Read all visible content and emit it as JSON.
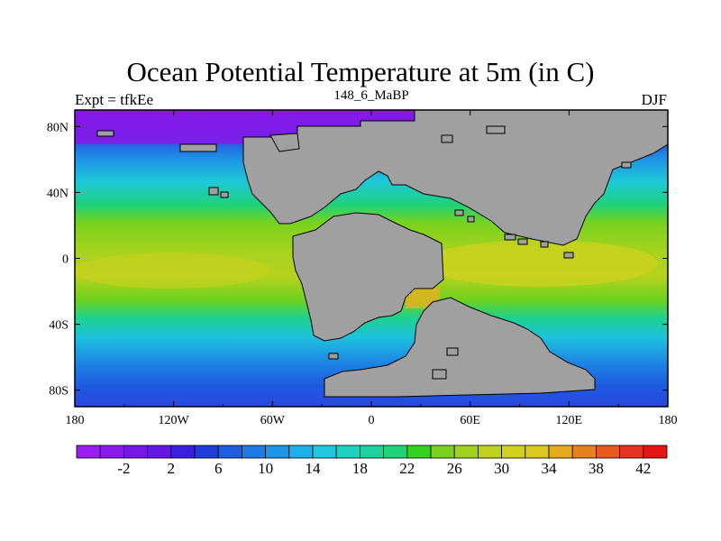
{
  "title": "Ocean Potential Temperature at 5m (in C)",
  "left_string": "Expt = tfkEe",
  "center_string": "148_6_MaBP",
  "right_string": "DJF",
  "land_color": "#a0a0a0",
  "x_ticks": [
    "180",
    "120W",
    "60W",
    "0",
    "60E",
    "120E",
    "180"
  ],
  "y_ticks": [
    "80N",
    "40N",
    "0",
    "40S",
    "80S"
  ],
  "colorbar": {
    "labels": [
      "-2",
      "2",
      "6",
      "10",
      "14",
      "18",
      "22",
      "26",
      "30",
      "34",
      "38",
      "42"
    ],
    "colors": [
      "#9b1ef0",
      "#8a1aeb",
      "#7716e6",
      "#6417e2",
      "#3c1ee0",
      "#1e3ddc",
      "#1e5ce0",
      "#1e7ae4",
      "#1e96e8",
      "#1eb0e8",
      "#1ec8e0",
      "#1ed2c0",
      "#1ed2a0",
      "#1ed27a",
      "#32d21e",
      "#78d21e",
      "#a0d21e",
      "#bed21e",
      "#d2d21e",
      "#dcc81e",
      "#e6aa1e",
      "#e6821e",
      "#e65a1e",
      "#e6321e",
      "#e61414"
    ]
  }
}
